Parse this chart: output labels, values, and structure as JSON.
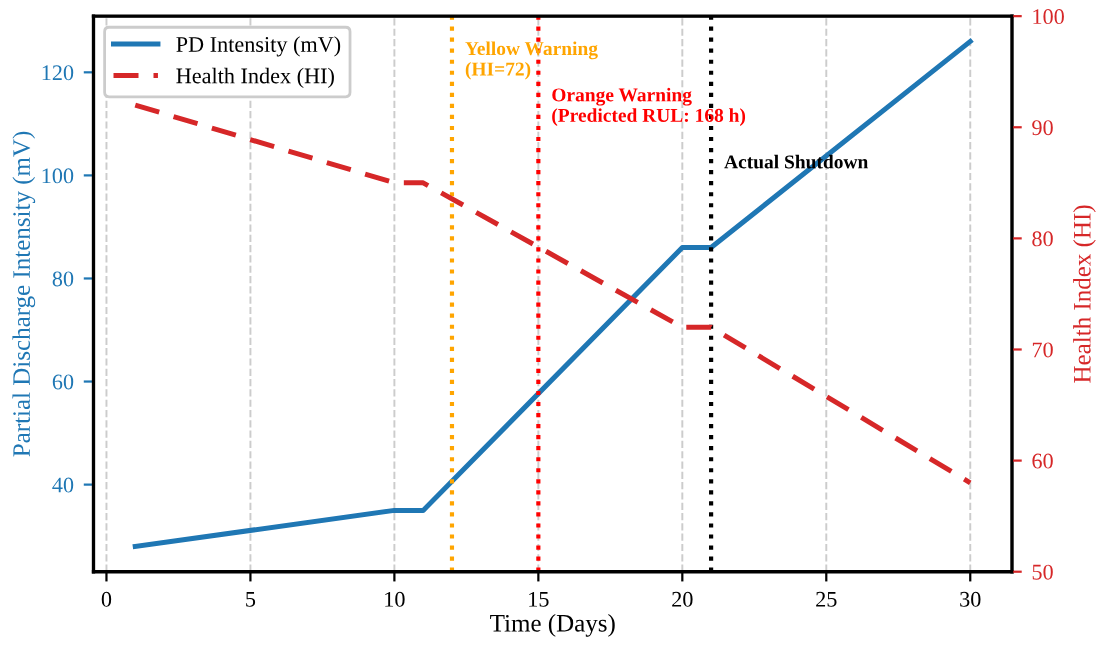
{
  "chart_data": {
    "type": "line",
    "xlabel": "Time (Days)",
    "ylabel": "Partial Discharge Intensity (mV)",
    "y2label": "Health Index (HI)",
    "xlim": [
      -0.45,
      31.45
    ],
    "xticks": [
      0,
      5,
      10,
      15,
      20,
      25,
      30
    ],
    "ylim": [
      23.1,
      130.9
    ],
    "yticks": [
      40,
      60,
      80,
      100,
      120
    ],
    "y2lim": [
      50,
      100
    ],
    "y2ticks": [
      50,
      60,
      70,
      80,
      90,
      100
    ],
    "grid": "x",
    "legend": "top left",
    "series": [
      {
        "name": "PD Intensity (mV)",
        "color": "#1f77b4",
        "line_style": "solid",
        "x": [
          1,
          10,
          11,
          20,
          21,
          30
        ],
        "values": [
          28,
          35,
          35,
          86,
          86,
          126
        ]
      },
      {
        "name": "Health Index (HI)",
        "color": "#d62728",
        "line_style": "dashed",
        "axis": "y2",
        "x": [
          1,
          10,
          11,
          20,
          21,
          30
        ],
        "values": [
          92,
          85,
          85,
          72,
          72,
          58
        ]
      }
    ],
    "ref_lines": [
      {
        "axis": "x",
        "value": 12,
        "color": "#ffa500",
        "line_style": "dotted"
      },
      {
        "axis": "x",
        "value": 15,
        "color": "#ff0000",
        "line_style": "dotted"
      },
      {
        "axis": "x",
        "value": 21,
        "color": "#000000",
        "line_style": "dotted"
      }
    ],
    "annotations": [
      {
        "text": "Yellow Warning\n(HI=72)",
        "x": 12,
        "y": 126
      },
      {
        "text": "Orange Warning\n(Predicted RUL: 168 h)",
        "x": 15,
        "y": 117
      },
      {
        "text": "Actual Shutdown",
        "x": 21,
        "y": 104
      }
    ]
  }
}
